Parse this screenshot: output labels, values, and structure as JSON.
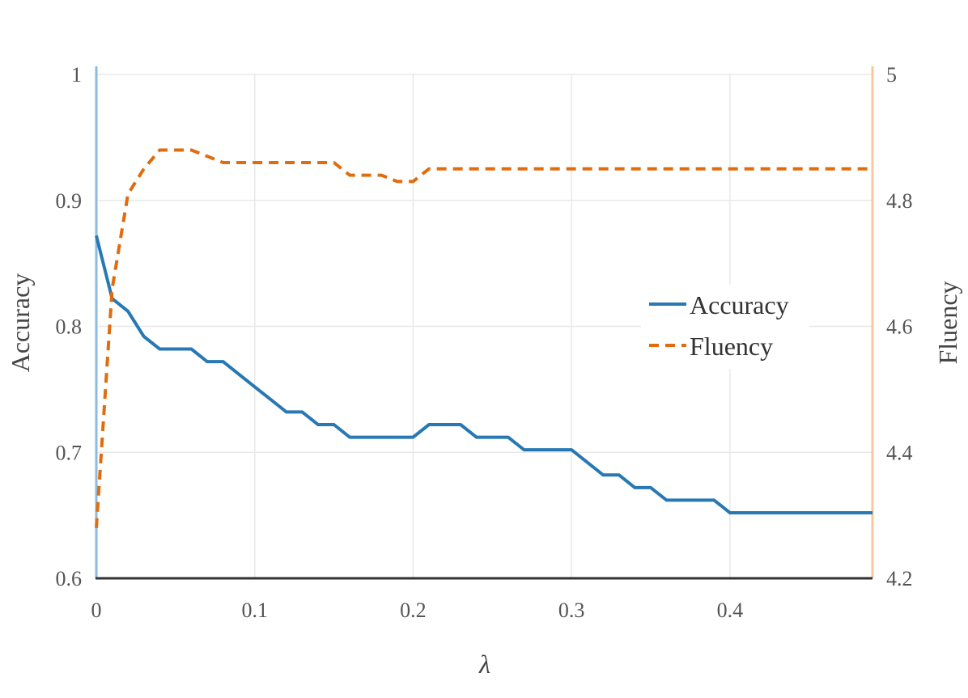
{
  "chart_data": {
    "type": "line",
    "xlabel": "λ",
    "ylabel": "Accuracy",
    "y2label": "Fluency",
    "xlim": [
      0,
      0.49
    ],
    "ylim": [
      0.6,
      1.0
    ],
    "y2lim": [
      4.2,
      5.0
    ],
    "xticks": [
      "0",
      "0.1",
      "0.2",
      "0.3",
      "0.4"
    ],
    "yticks": [
      "0.6",
      "0.7",
      "0.8",
      "0.9",
      "1"
    ],
    "y2ticks": [
      "4.2",
      "4.4",
      "4.6",
      "4.8",
      "5"
    ],
    "grid": true,
    "legend_position": "right",
    "x": [
      0,
      0.01,
      0.02,
      0.03,
      0.04,
      0.05,
      0.06,
      0.07,
      0.08,
      0.09,
      0.1,
      0.11,
      0.12,
      0.13,
      0.14,
      0.15,
      0.16,
      0.17,
      0.18,
      0.19,
      0.2,
      0.21,
      0.22,
      0.23,
      0.24,
      0.25,
      0.26,
      0.27,
      0.28,
      0.29,
      0.3,
      0.31,
      0.32,
      0.33,
      0.34,
      0.35,
      0.36,
      0.37,
      0.38,
      0.39,
      0.4,
      0.41,
      0.42,
      0.43,
      0.44,
      0.45,
      0.46,
      0.47,
      0.48,
      0.49
    ],
    "series": [
      {
        "name": "Accuracy",
        "axis": "left",
        "color": "#2878b4",
        "dash": "solid",
        "values": [
          0.872,
          0.822,
          0.812,
          0.792,
          0.782,
          0.782,
          0.782,
          0.772,
          0.772,
          0.762,
          0.752,
          0.742,
          0.732,
          0.732,
          0.722,
          0.722,
          0.712,
          0.712,
          0.712,
          0.712,
          0.712,
          0.722,
          0.722,
          0.722,
          0.712,
          0.712,
          0.712,
          0.702,
          0.702,
          0.702,
          0.702,
          0.692,
          0.682,
          0.682,
          0.672,
          0.672,
          0.662,
          0.662,
          0.662,
          0.662,
          0.652,
          0.652,
          0.652,
          0.652,
          0.652,
          0.652,
          0.652,
          0.652,
          0.652,
          0.652
        ]
      },
      {
        "name": "Fluency",
        "axis": "right",
        "color": "#e06c0e",
        "dash": "dashed",
        "values": [
          4.28,
          4.66,
          4.81,
          4.85,
          4.88,
          4.88,
          4.88,
          4.87,
          4.86,
          4.86,
          4.86,
          4.86,
          4.86,
          4.86,
          4.86,
          4.86,
          4.84,
          4.84,
          4.84,
          4.83,
          4.83,
          4.85,
          4.85,
          4.85,
          4.85,
          4.85,
          4.85,
          4.85,
          4.85,
          4.85,
          4.85,
          4.85,
          4.85,
          4.85,
          4.85,
          4.85,
          4.85,
          4.85,
          4.85,
          4.85,
          4.85,
          4.85,
          4.85,
          4.85,
          4.85,
          4.85,
          4.85,
          4.85,
          4.85,
          4.85
        ]
      }
    ],
    "axis_colors": {
      "left": "#8cbbe0",
      "right": "#f8c898",
      "bottom": "#333333"
    }
  }
}
